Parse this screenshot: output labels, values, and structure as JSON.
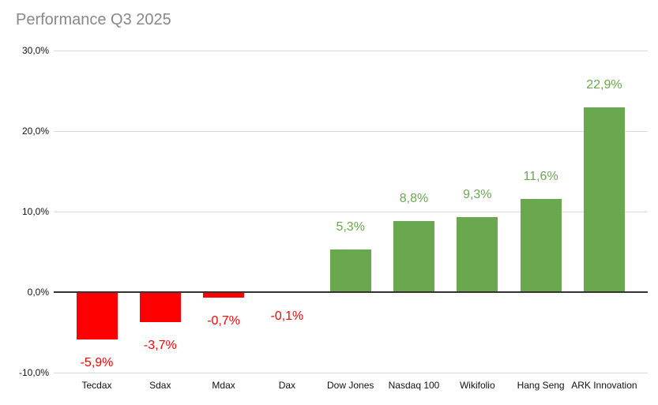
{
  "chart_data": {
    "type": "bar",
    "title": "Performance Q3 2025",
    "categories": [
      "Tecdax",
      "Sdax",
      "Mdax",
      "Dax",
      "Dow Jones",
      "Nasdaq 100",
      "Wikifolio",
      "Hang Seng",
      "ARK Innovation"
    ],
    "values": [
      -5.9,
      -3.7,
      -0.7,
      -0.1,
      5.3,
      8.8,
      9.3,
      11.6,
      22.9
    ],
    "value_labels": [
      "-5,9%",
      "-3,7%",
      "-0,7%",
      "-0,1%",
      "5,3%",
      "8,8%",
      "9,3%",
      "11,6%",
      "22,9%"
    ],
    "xlabel": "",
    "ylabel": "",
    "ylim": [
      -10,
      30
    ],
    "y_ticks": [
      {
        "value": 30,
        "label": "30,0%"
      },
      {
        "value": 20,
        "label": "20,0%"
      },
      {
        "value": 10,
        "label": "10,0%"
      },
      {
        "value": 0,
        "label": "0,0%"
      },
      {
        "value": -10,
        "label": "-10,0%"
      }
    ],
    "grid": true,
    "legend_position": "none",
    "colors": {
      "positive_bar": "#6aa84f",
      "negative_bar": "#ff0000",
      "positive_label": "#6aa84f",
      "negative_label": "#ff0000",
      "title_text": "#888888",
      "axis_text": "#111111",
      "gridline": "#d9d9d9",
      "zero_axis": "#333333",
      "background": "#ffffff"
    }
  }
}
